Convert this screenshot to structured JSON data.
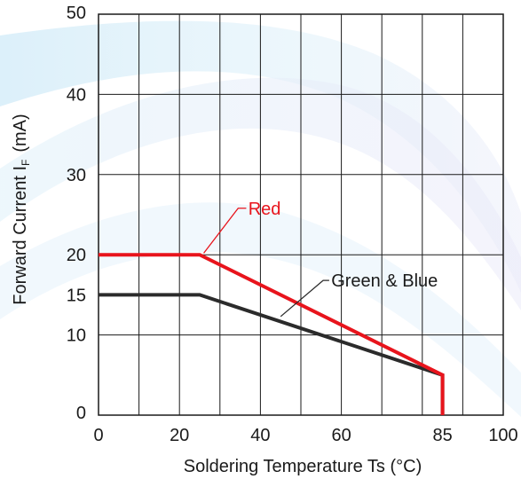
{
  "chart_data": {
    "type": "line",
    "title": "",
    "xlabel": "Soldering Temperature Ts (°C)",
    "ylabel": {
      "main": "Forward Current  I",
      "subscript": "F",
      "unit": "(mA)"
    },
    "xlim": [
      0,
      100
    ],
    "ylim": [
      0,
      50
    ],
    "x_ticks": [
      "0",
      "20",
      "40",
      "60",
      "85",
      "100"
    ],
    "x_tick_values": [
      0,
      20,
      40,
      60,
      85,
      100
    ],
    "y_ticks": [
      "0",
      "10",
      "15",
      "20",
      "30",
      "40",
      "50"
    ],
    "y_tick_values": [
      0,
      10,
      15,
      20,
      30,
      40,
      50
    ],
    "x_grid": [
      10,
      20,
      30,
      40,
      50,
      60,
      70,
      80,
      90
    ],
    "y_grid": [
      10,
      20,
      30,
      40
    ],
    "grid": true,
    "series": [
      {
        "name": "Red",
        "color": "#e8141c",
        "points": [
          [
            0,
            20
          ],
          [
            25,
            20
          ],
          [
            85,
            5
          ],
          [
            85,
            0
          ]
        ]
      },
      {
        "name": "Green & Blue",
        "color": "#2b2b2b",
        "points": [
          [
            0,
            15
          ],
          [
            25,
            15
          ],
          [
            85,
            5
          ],
          [
            85,
            0
          ]
        ]
      }
    ]
  }
}
